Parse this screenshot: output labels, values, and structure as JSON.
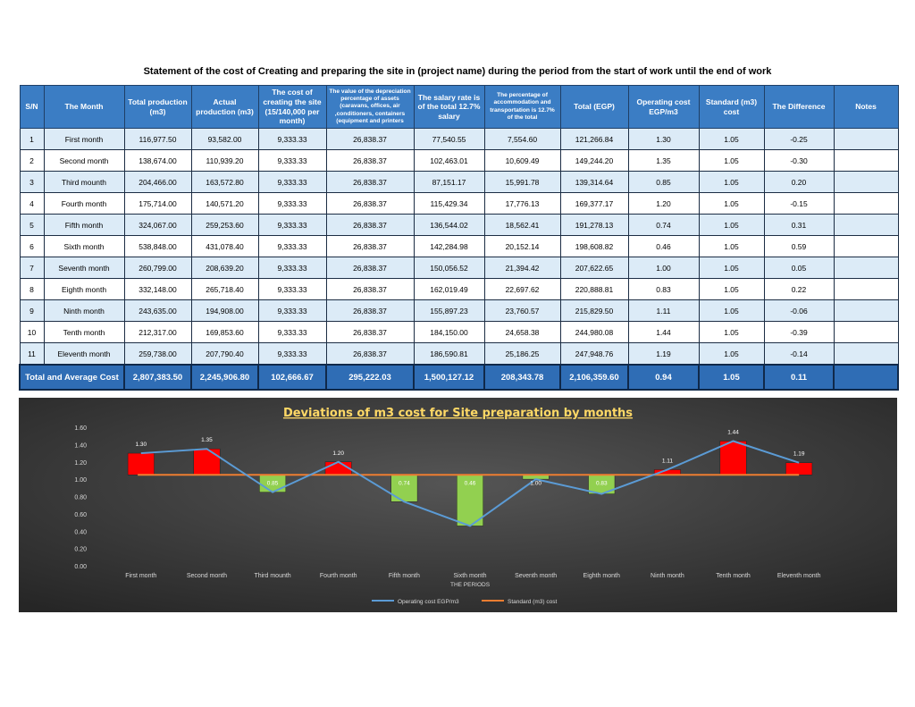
{
  "title": "Statement of the cost of Creating and preparing the site in (project name) during the period from the start of work until the end of work",
  "table": {
    "headers": [
      "S/N",
      "The Month",
      "Total production (m3)",
      "Actual production (m3)",
      "The cost of creating the site (15/140,000 per month)",
      "The value of the depreciation percentage of assets (caravans, offices, air ,conditioners, containers (equipment and printers",
      "The salary rate is of the total 12.7% salary",
      "The percentage of accommodation and transportation is 12.7% of the total",
      "Total (EGP)",
      "Operating cost EGP/m3",
      "Standard (m3) cost",
      "The Difference",
      "Notes"
    ],
    "rows": [
      [
        "1",
        "First month",
        "116,977.50",
        "93,582.00",
        "9,333.33",
        "26,838.37",
        "77,540.55",
        "7,554.60",
        "121,266.84",
        "1.30",
        "1.05",
        "-0.25",
        ""
      ],
      [
        "2",
        "Second month",
        "138,674.00",
        "110,939.20",
        "9,333.33",
        "26,838.37",
        "102,463.01",
        "10,609.49",
        "149,244.20",
        "1.35",
        "1.05",
        "-0.30",
        ""
      ],
      [
        "3",
        "Third mounth",
        "204,466.00",
        "163,572.80",
        "9,333.33",
        "26,838.37",
        "87,151.17",
        "15,991.78",
        "139,314.64",
        "0.85",
        "1.05",
        "0.20",
        ""
      ],
      [
        "4",
        "Fourth month",
        "175,714.00",
        "140,571.20",
        "9,333.33",
        "26,838.37",
        "115,429.34",
        "17,776.13",
        "169,377.17",
        "1.20",
        "1.05",
        "-0.15",
        ""
      ],
      [
        "5",
        "Fifth month",
        "324,067.00",
        "259,253.60",
        "9,333.33",
        "26,838.37",
        "136,544.02",
        "18,562.41",
        "191,278.13",
        "0.74",
        "1.05",
        "0.31",
        ""
      ],
      [
        "6",
        "Sixth month",
        "538,848.00",
        "431,078.40",
        "9,333.33",
        "26,838.37",
        "142,284.98",
        "20,152.14",
        "198,608.82",
        "0.46",
        "1.05",
        "0.59",
        ""
      ],
      [
        "7",
        "Seventh month",
        "260,799.00",
        "208,639.20",
        "9,333.33",
        "26,838.37",
        "150,056.52",
        "21,394.42",
        "207,622.65",
        "1.00",
        "1.05",
        "0.05",
        ""
      ],
      [
        "8",
        "Eighth month",
        "332,148.00",
        "265,718.40",
        "9,333.33",
        "26,838.37",
        "162,019.49",
        "22,697.62",
        "220,888.81",
        "0.83",
        "1.05",
        "0.22",
        ""
      ],
      [
        "9",
        "Ninth month",
        "243,635.00",
        "194,908.00",
        "9,333.33",
        "26,838.37",
        "155,897.23",
        "23,760.57",
        "215,829.50",
        "1.11",
        "1.05",
        "-0.06",
        ""
      ],
      [
        "10",
        "Tenth month",
        "212,317.00",
        "169,853.60",
        "9,333.33",
        "26,838.37",
        "184,150.00",
        "24,658.38",
        "244,980.08",
        "1.44",
        "1.05",
        "-0.39",
        ""
      ],
      [
        "11",
        "Eleventh month",
        "259,738.00",
        "207,790.40",
        "9,333.33",
        "26,838.37",
        "186,590.81",
        "25,186.25",
        "247,948.76",
        "1.19",
        "1.05",
        "-0.14",
        ""
      ]
    ],
    "total": [
      "Total and Average Cost",
      "2,807,383.50",
      "2,245,906.80",
      "102,666.67",
      "295,222.03",
      "1,500,127.12",
      "208,343.78",
      "2,106,359.60",
      "0.94",
      "1.05",
      "0.11",
      ""
    ]
  },
  "chart_data": {
    "type": "line",
    "title": "Deviations of m3 cost for Site preparation by months",
    "xlabel": "THE PERIODS",
    "ylabel": "",
    "categories": [
      "First month",
      "Second month",
      "Third mounth",
      "Fourth month",
      "Fifth month",
      "Sixth month",
      "Seventh month",
      "Eighth month",
      "Ninth month",
      "Tenth month",
      "Eleventh month"
    ],
    "series": [
      {
        "name": "Operating cost EGP/m3",
        "values": [
          1.3,
          1.35,
          0.85,
          1.2,
          0.74,
          0.46,
          1.0,
          0.83,
          1.11,
          1.44,
          1.19
        ],
        "color": "#5b9bd5"
      },
      {
        "name": "Standard (m3) cost",
        "values": [
          1.05,
          1.05,
          1.05,
          1.05,
          1.05,
          1.05,
          1.05,
          1.05,
          1.05,
          1.05,
          1.05
        ],
        "color": "#ed7d31"
      }
    ],
    "deviation_bars": {
      "above_color": "#ff0000",
      "below_color": "#92d050"
    },
    "ylim": [
      0.0,
      1.6
    ],
    "yticks": [
      "0.00",
      "0.20",
      "0.40",
      "0.60",
      "0.80",
      "1.00",
      "1.20",
      "1.40",
      "1.60"
    ],
    "grid": false,
    "legend": "bottom",
    "background": "#3a3a3a",
    "title_color": "#ffd966"
  }
}
